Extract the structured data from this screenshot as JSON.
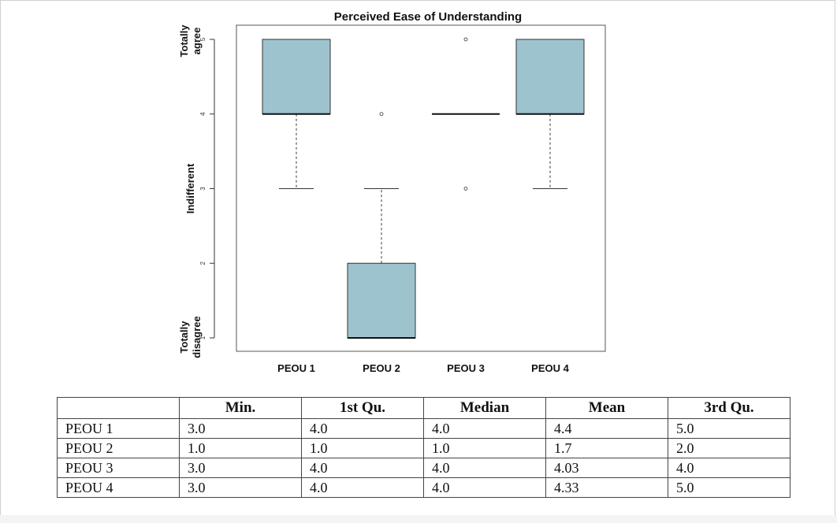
{
  "chart_data": {
    "type": "boxplot",
    "title": "Perceived Ease of Understanding",
    "categories": [
      "PEOU 1",
      "PEOU 2",
      "PEOU 3",
      "PEOU 4"
    ],
    "boxes": [
      {
        "name": "PEOU 1",
        "whisker_low": 3,
        "q1": 4,
        "median": 4,
        "q3": 5,
        "whisker_high": 5,
        "outliers": []
      },
      {
        "name": "PEOU 2",
        "whisker_low": 1,
        "q1": 1,
        "median": 1,
        "q3": 2,
        "whisker_high": 3,
        "outliers": [
          4
        ]
      },
      {
        "name": "PEOU 3",
        "whisker_low": 4,
        "q1": 4,
        "median": 4,
        "q3": 4,
        "whisker_high": 4,
        "outliers": [
          3,
          5
        ]
      },
      {
        "name": "PEOU 4",
        "whisker_low": 3,
        "q1": 4,
        "median": 4,
        "q3": 5,
        "whisker_high": 5,
        "outliers": []
      }
    ],
    "yticks": [
      1,
      2,
      3,
      4,
      5
    ],
    "ylim": [
      0.8,
      5.2
    ],
    "y_category_labels": [
      {
        "value": 5,
        "lines": [
          "Totally",
          "agree"
        ]
      },
      {
        "value": 3,
        "lines": [
          "Indifferent"
        ]
      },
      {
        "value": 1,
        "lines": [
          "Totally",
          "disagree"
        ]
      }
    ],
    "box_color": "#9dc3cf",
    "grid": false
  },
  "table": {
    "headers": [
      "",
      "Min.",
      "1st Qu.",
      "Median",
      "Mean",
      "3rd Qu."
    ],
    "rows": [
      [
        "PEOU 1",
        "3.0",
        "4.0",
        "4.0",
        "4.4",
        "5.0"
      ],
      [
        "PEOU 2",
        "1.0",
        "1.0",
        "1.0",
        "1.7",
        "2.0"
      ],
      [
        "PEOU 3",
        "3.0",
        "4.0",
        "4.0",
        "4.03",
        "4.0"
      ],
      [
        "PEOU 4",
        "3.0",
        "4.0",
        "4.0",
        "4.33",
        "5.0"
      ]
    ]
  }
}
